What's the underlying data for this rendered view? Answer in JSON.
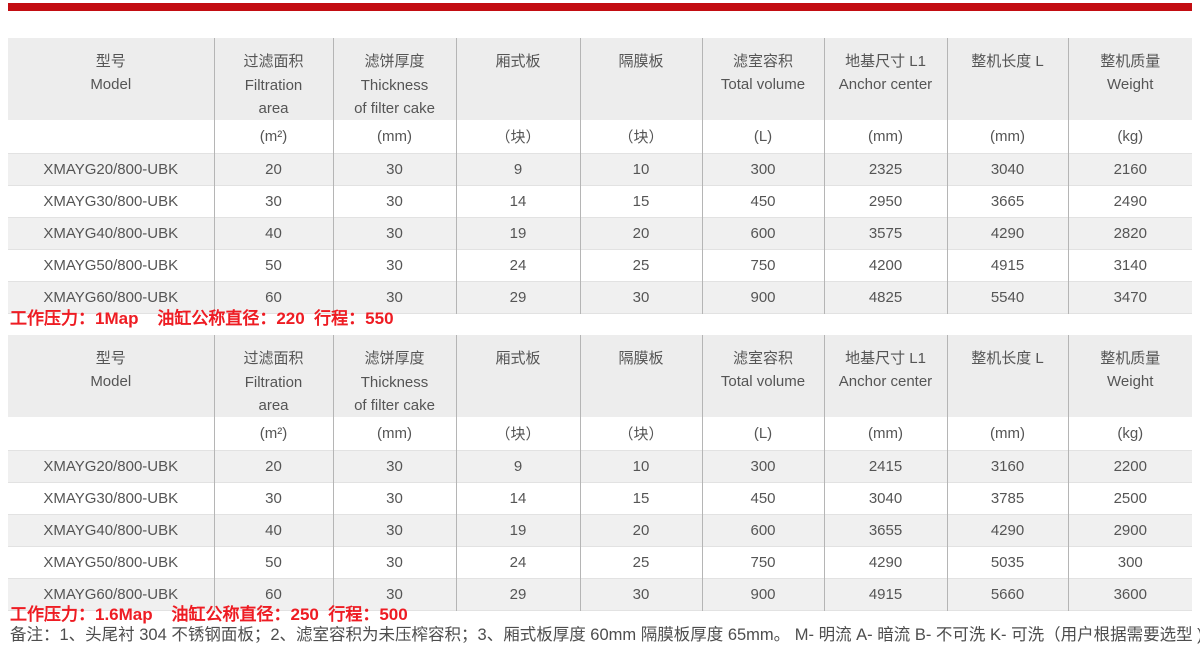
{
  "colors": {
    "accent_bar": "#c30d12",
    "red_text": "#ee1c23",
    "table_text": "#555555",
    "header_bg": "#ededed",
    "stripe_bg": "#f0f0f0"
  },
  "table_header": {
    "columns": [
      {
        "line1": "型号",
        "line2": "Model"
      },
      {
        "line1": "过滤面积 Filtration",
        "line2": "area"
      },
      {
        "line1": "滤饼厚度 Thickness",
        "line2": "of filter cake"
      },
      {
        "line1": "厢式板",
        "line2": ""
      },
      {
        "line1": "隔膜板",
        "line2": ""
      },
      {
        "line1": "滤室容积",
        "line2": "Total volume"
      },
      {
        "line1": "地基尺寸 L1",
        "line2": "Anchor center"
      },
      {
        "line1": "整机长度 L",
        "line2": ""
      },
      {
        "line1": "整机质量",
        "line2": "Weight"
      }
    ],
    "units": [
      "",
      "(m²)",
      "(mm)",
      "（块）",
      "（块）",
      "(L)",
      "(mm)",
      "(mm)",
      "(kg)"
    ]
  },
  "table1": {
    "rows": [
      [
        "XMAYG20/800-UBK",
        "20",
        "30",
        "9",
        "10",
        "300",
        "2325",
        "3040",
        "2160"
      ],
      [
        "XMAYG30/800-UBK",
        "30",
        "30",
        "14",
        "15",
        "450",
        "2950",
        "3665",
        "2490"
      ],
      [
        "XMAYG40/800-UBK",
        "40",
        "30",
        "19",
        "20",
        "600",
        "3575",
        "4290",
        "2820"
      ],
      [
        "XMAYG50/800-UBK",
        "50",
        "30",
        "24",
        "25",
        "750",
        "4200",
        "4915",
        "3140"
      ],
      [
        "XMAYG60/800-UBK",
        "60",
        "30",
        "29",
        "30",
        "900",
        "4825",
        "5540",
        "3470"
      ]
    ],
    "params_line": "工作压力：1Map    油缸公称直径：220  行程：550"
  },
  "table2": {
    "rows": [
      [
        "XMAYG20/800-UBK",
        "20",
        "30",
        "9",
        "10",
        "300",
        "2415",
        "3160",
        "2200"
      ],
      [
        "XMAYG30/800-UBK",
        "30",
        "30",
        "14",
        "15",
        "450",
        "3040",
        "3785",
        "2500"
      ],
      [
        "XMAYG40/800-UBK",
        "40",
        "30",
        "19",
        "20",
        "600",
        "3655",
        "4290",
        "2900"
      ],
      [
        "XMAYG50/800-UBK",
        "50",
        "30",
        "24",
        "25",
        "750",
        "4290",
        "5035",
        "300"
      ],
      [
        "XMAYG60/800-UBK",
        "60",
        "30",
        "29",
        "30",
        "900",
        "4915",
        "5660",
        "3600"
      ]
    ],
    "params_line": "工作压力：1.6Map    油缸公称直径：250  行程：500"
  },
  "footer_note": "备注：1、头尾衬 304 不锈钢面板；2、滤室容积为未压榨容积；3、厢式板厚度 60mm 隔膜板厚度 65mm。 M- 明流 A- 暗流 B- 不可洗 K- 可洗（用户根据需要选型 );"
}
